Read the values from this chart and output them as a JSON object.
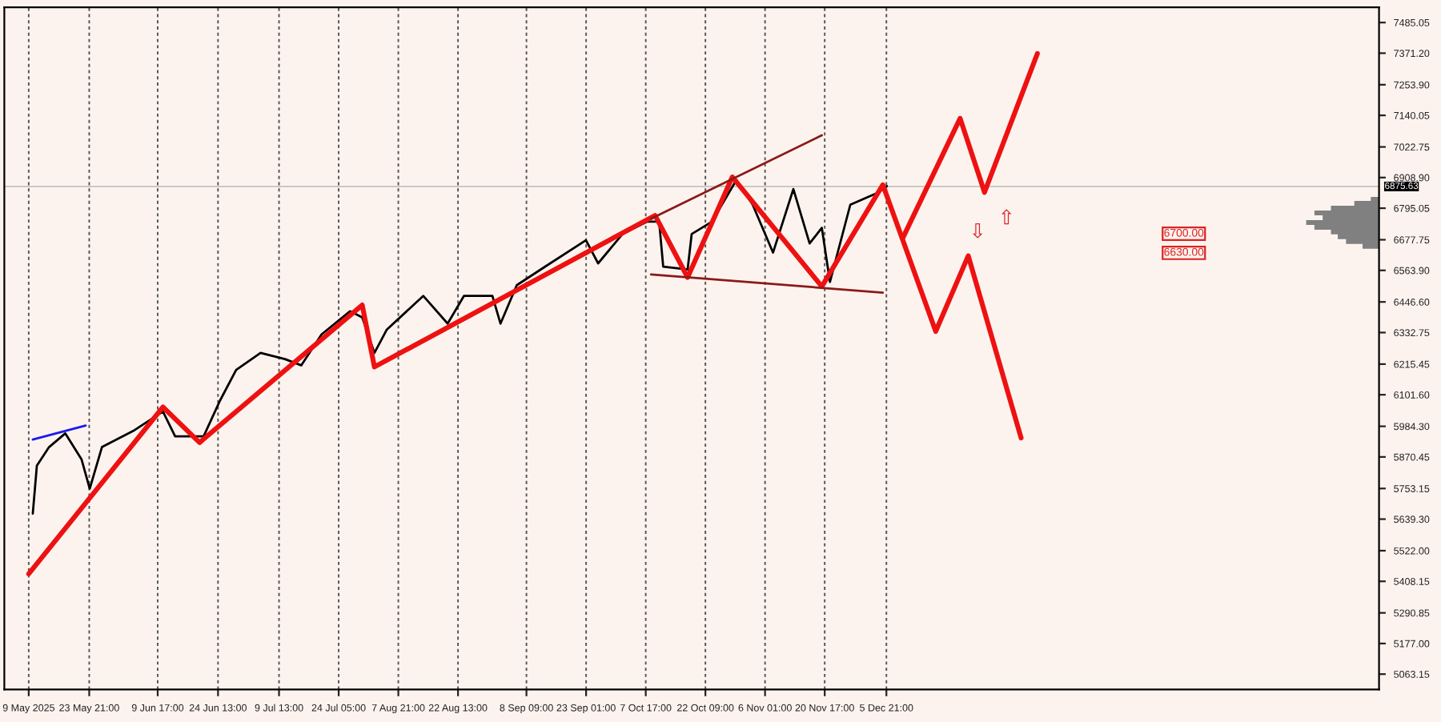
{
  "chart_data": {
    "type": "line",
    "series": [
      {
        "color": "#000000",
        "x": [
          "2025-05-10",
          "2025-05-11",
          "2025-05-14",
          "2025-05-18",
          "2025-05-22",
          "2025-05-24",
          "2025-05-27",
          "2025-06-04",
          "2025-06-11",
          "2025-06-14",
          "2025-06-21",
          "2025-06-25",
          "2025-06-29",
          "2025-07-05",
          "2025-07-11",
          "2025-07-15",
          "2025-07-20",
          "2025-07-27",
          "2025-07-30",
          "2025-08-02",
          "2025-08-05",
          "2025-08-14",
          "2025-08-20",
          "2025-08-24",
          "2025-08-31",
          "2025-09-02",
          "2025-09-06",
          "2025-09-13",
          "2025-09-23",
          "2025-09-26",
          "2025-10-02",
          "2025-10-08",
          "2025-10-11",
          "2025-10-12",
          "2025-10-18",
          "2025-10-19",
          "2025-10-24",
          "2025-10-30",
          "2025-11-03",
          "2025-11-08",
          "2025-11-13",
          "2025-11-17",
          "2025-11-20",
          "2025-11-22",
          "2025-11-27",
          "2025-12-04",
          "2025-12-06"
        ],
        "values": [
          5660,
          5838,
          5907,
          5958,
          5861,
          5752,
          5907,
          5970,
          6039,
          5947,
          5947,
          6079,
          6194,
          6257,
          6234,
          6211,
          6326,
          6412,
          6389,
          6257,
          6343,
          6469,
          6366,
          6469,
          6469,
          6366,
          6509,
          6578,
          6676,
          6590,
          6699,
          6745,
          6745,
          6578,
          6567,
          6699,
          6745,
          6900,
          6808,
          6630,
          6866,
          6664,
          6722,
          6521,
          6808,
          6854,
          6877
        ]
      },
      {
        "color": "#ee1111",
        "x": [
          "2025-05-09",
          "2025-06-11",
          "2025-06-20",
          "2025-07-30",
          "2025-08-02",
          "2025-10-10",
          "2025-10-18",
          "2025-10-29",
          "2025-11-20",
          "2025-12-05",
          "2025-12-18",
          "2025-12-26",
          "2026-01-08"
        ],
        "values": [
          5436,
          6056,
          5924,
          6435,
          6205,
          6768,
          6538,
          6911,
          6504,
          6882,
          6337,
          6618,
          5941
        ]
      },
      {
        "color": "#ee1111",
        "x": [
          "2025-12-10",
          "2025-12-24",
          "2025-12-30",
          "2026-01-12"
        ],
        "values": [
          6687,
          7129,
          6854,
          7370
        ]
      },
      {
        "color": "#8b1a1a",
        "x": [
          "2025-10-09",
          "2025-11-20"
        ],
        "values": [
          6756,
          7066
        ]
      },
      {
        "color": "#8b1a1a",
        "x": [
          "2025-10-09",
          "2025-12-05"
        ],
        "values": [
          6549,
          6481
        ]
      },
      {
        "color": "#1a1aee",
        "x": [
          "2025-05-10",
          "2025-05-23"
        ],
        "values": [
          5935,
          5987
        ]
      }
    ],
    "xlim": [
      "2025-05-03",
      "2026-04-06"
    ],
    "xticks": [
      {
        "value": "2025-05-09",
        "label": "9 May 2025"
      },
      {
        "value": "2025-05-23T21:00",
        "label": "23 May 21:00"
      },
      {
        "value": "2025-06-09T17:00",
        "label": "9 Jun 17:00"
      },
      {
        "value": "2025-06-24T13:00",
        "label": "24 Jun 13:00"
      },
      {
        "value": "2025-07-09T13:00",
        "label": "9 Jul 13:00"
      },
      {
        "value": "2025-07-24T05:00",
        "label": "24 Jul 05:00"
      },
      {
        "value": "2025-08-07T21:00",
        "label": "7 Aug 21:00"
      },
      {
        "value": "2025-08-22T13:00",
        "label": "22 Aug 13:00"
      },
      {
        "value": "2025-09-08T09:00",
        "label": "8 Sep 09:00"
      },
      {
        "value": "2025-09-23T01:00",
        "label": "23 Sep 01:00"
      },
      {
        "value": "2025-10-07T17:00",
        "label": "7 Oct 17:00"
      },
      {
        "value": "2025-10-22T09:00",
        "label": "22 Oct 09:00"
      },
      {
        "value": "2025-11-06T01:00",
        "label": "6 Nov 01:00"
      },
      {
        "value": "2025-11-20T17:00",
        "label": "20 Nov 17:00"
      },
      {
        "value": "2025-12-05T21:00",
        "label": "5 Dec 21:00"
      }
    ],
    "ylim": [
      5006,
      7542
    ],
    "yticks": [
      {
        "value": 7485.05,
        "label": "7485.05"
      },
      {
        "value": 7371.2,
        "label": "7371.20"
      },
      {
        "value": 7253.9,
        "label": "7253.90"
      },
      {
        "value": 7140.05,
        "label": "7140.05"
      },
      {
        "value": 7022.75,
        "label": "7022.75"
      },
      {
        "value": 6908.9,
        "label": "6908.90"
      },
      {
        "value": 6795.05,
        "label": "6795.05"
      },
      {
        "value": 6677.75,
        "label": "6677.75"
      },
      {
        "value": 6563.9,
        "label": "6563.90"
      },
      {
        "value": 6446.6,
        "label": "6446.60"
      },
      {
        "value": 6332.75,
        "label": "6332.75"
      },
      {
        "value": 6215.45,
        "label": "6215.45"
      },
      {
        "value": 6101.6,
        "label": "6101.60"
      },
      {
        "value": 5984.3,
        "label": "5984.30"
      },
      {
        "value": 5870.45,
        "label": "5870.45"
      },
      {
        "value": 5753.15,
        "label": "5753.15"
      },
      {
        "value": 5639.3,
        "label": "5639.30"
      },
      {
        "value": 5522.0,
        "label": "5522.00"
      },
      {
        "value": 5408.15,
        "label": "5408.15"
      },
      {
        "value": 5290.85,
        "label": "5290.85"
      },
      {
        "value": 5177.0,
        "label": "5177.00"
      },
      {
        "value": 5063.15,
        "label": "5063.15"
      }
    ],
    "grid": "x",
    "ref_lines": [
      {
        "axis": "y",
        "value": 6875.63,
        "label": "6875.63",
        "color": "#c8c8c8"
      }
    ],
    "annotations": [
      "⇧",
      "⇩",
      "6700.00",
      "6630.00"
    ]
  }
}
